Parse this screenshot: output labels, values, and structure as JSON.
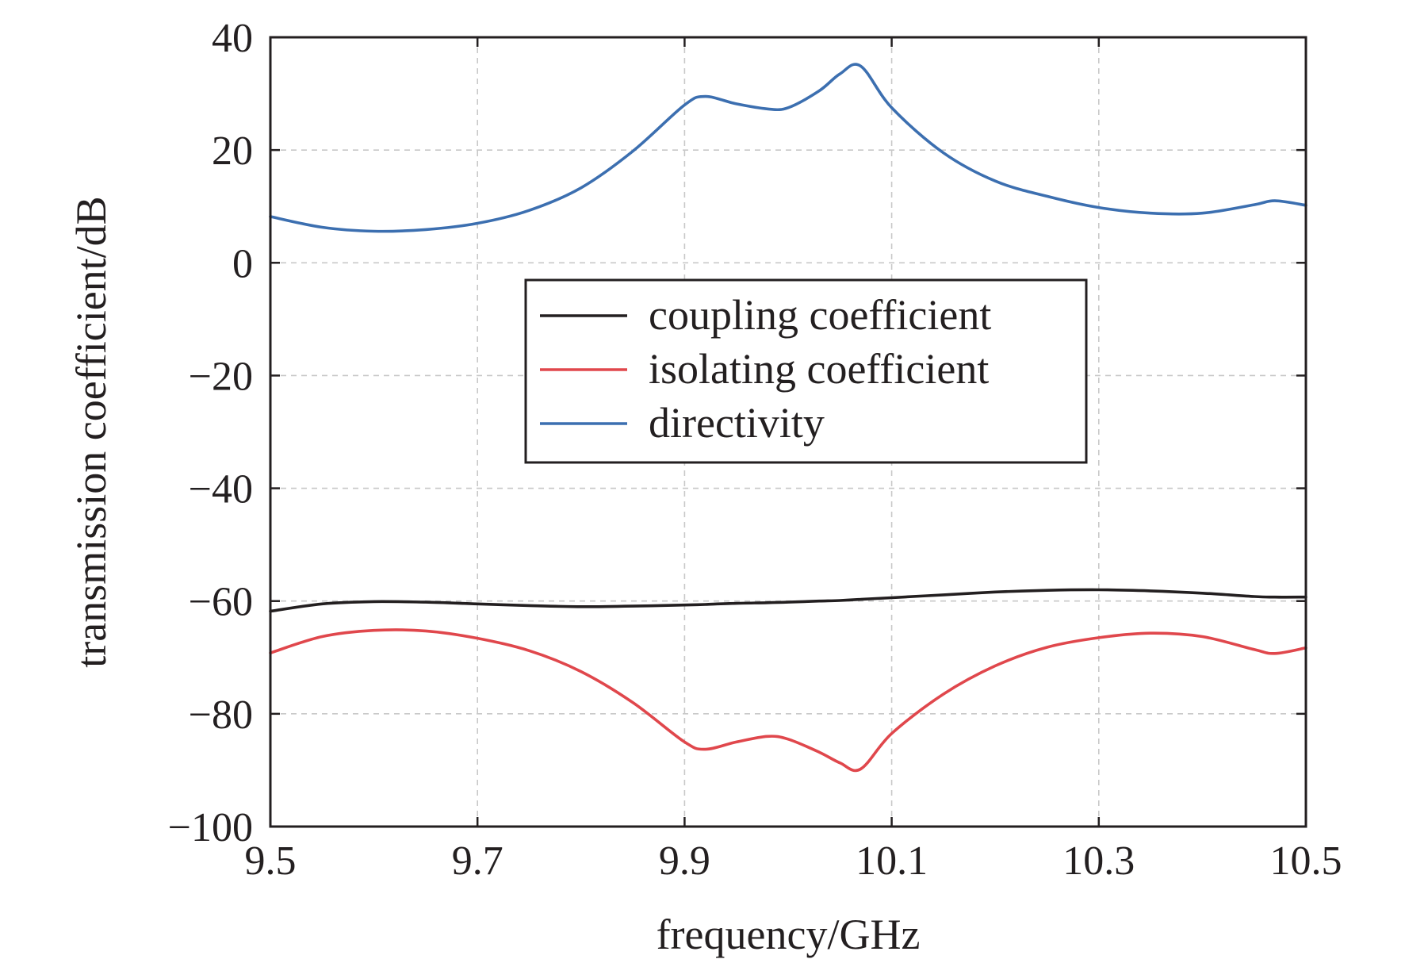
{
  "chart_data": {
    "type": "line",
    "title": "",
    "xlabel": "frequency/GHz",
    "ylabel": "transmission coefficient/dB",
    "xlim": [
      9.5,
      10.5
    ],
    "ylim": [
      -100,
      40
    ],
    "xticks": [
      9.5,
      9.7,
      9.9,
      10.1,
      10.3,
      10.5
    ],
    "xtick_labels": [
      "9.5",
      "9.7",
      "9.9",
      "10.1",
      "10.3",
      "10.5"
    ],
    "yticks": [
      40,
      20,
      0,
      -20,
      -40,
      -60,
      -80,
      -100
    ],
    "ytick_labels": [
      "40",
      "20",
      "0",
      "−20",
      "−40",
      "−60",
      "−80",
      "−100"
    ],
    "grid": true,
    "legend_position": "center",
    "x": [
      9.5,
      9.55,
      9.6,
      9.65,
      9.7,
      9.75,
      9.8,
      9.85,
      9.9,
      9.92,
      9.95,
      9.98,
      10.0,
      10.03,
      10.05,
      10.07,
      10.1,
      10.15,
      10.2,
      10.25,
      10.3,
      10.35,
      10.4,
      10.45,
      10.47,
      10.5
    ],
    "series": [
      {
        "name": "coupling coefficient",
        "color": "#231f20",
        "values": [
          -61.8,
          -60.5,
          -60.1,
          -60.2,
          -60.5,
          -60.8,
          -61.0,
          -60.9,
          -60.7,
          -60.6,
          -60.4,
          -60.3,
          -60.2,
          -60.0,
          -59.9,
          -59.7,
          -59.4,
          -58.9,
          -58.4,
          -58.1,
          -58.0,
          -58.2,
          -58.6,
          -59.2,
          -59.3,
          -59.3
        ]
      },
      {
        "name": "isolating coefficient",
        "color": "#e0474c",
        "values": [
          -69.2,
          -66.3,
          -65.2,
          -65.3,
          -66.6,
          -68.8,
          -72.5,
          -78.0,
          -85.0,
          -86.3,
          -85.0,
          -84.0,
          -84.5,
          -86.8,
          -88.7,
          -89.8,
          -83.5,
          -76.5,
          -71.5,
          -68.2,
          -66.5,
          -65.7,
          -66.3,
          -68.6,
          -69.3,
          -68.3
        ]
      },
      {
        "name": "directivity",
        "color": "#3c6fb0",
        "values": [
          8.2,
          6.3,
          5.6,
          5.9,
          7.0,
          9.3,
          13.3,
          19.8,
          28.0,
          29.5,
          28.2,
          27.3,
          27.5,
          30.5,
          33.5,
          34.9,
          27.5,
          19.5,
          14.5,
          11.8,
          9.8,
          8.8,
          8.8,
          10.3,
          11.0,
          10.2
        ]
      }
    ]
  }
}
